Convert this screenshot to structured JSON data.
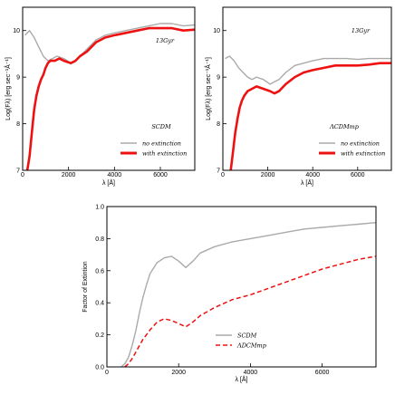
{
  "chart_data": [
    {
      "type": "line",
      "ylabel": "Log(Fλ) [erg sec⁻¹Å⁻¹]",
      "xlabel": "λ [Å]",
      "xlim": [
        0,
        7500
      ],
      "ylim": [
        7,
        10.5
      ],
      "xticks": [
        "0",
        "2000",
        "4000",
        "6000"
      ],
      "yticks": [
        "7",
        "8",
        "9",
        "10"
      ],
      "annotation_age": "13Gyr",
      "annotation_model": "SCDM",
      "legend_position": "bottom-right",
      "series": [
        {
          "name": "no extinction",
          "color": "#aaaaaa",
          "x": [
            100,
            300,
            500,
            700,
            900,
            1100,
            1300,
            1500,
            1800,
            2100,
            2300,
            2500,
            2800,
            3200,
            3600,
            4000,
            4500,
            5000,
            5500,
            6000,
            6500,
            7000,
            7500
          ],
          "y": [
            9.9,
            10.0,
            9.85,
            9.65,
            9.45,
            9.35,
            9.4,
            9.45,
            9.4,
            9.3,
            9.35,
            9.45,
            9.6,
            9.8,
            9.9,
            9.95,
            10.0,
            10.05,
            10.1,
            10.15,
            10.15,
            10.1,
            10.12
          ]
        },
        {
          "name": "with extinction",
          "color": "#ee1111",
          "x": [
            200,
            300,
            400,
            500,
            600,
            700,
            800,
            900,
            1000,
            1100,
            1200,
            1400,
            1600,
            1800,
            2100,
            2300,
            2500,
            2800,
            3200,
            3600,
            4000,
            4500,
            5000,
            5500,
            6000,
            6500,
            7000,
            7500
          ],
          "y": [
            7.0,
            7.3,
            7.8,
            8.3,
            8.6,
            8.8,
            8.95,
            9.05,
            9.2,
            9.3,
            9.35,
            9.35,
            9.4,
            9.35,
            9.3,
            9.35,
            9.45,
            9.55,
            9.75,
            9.85,
            9.9,
            9.95,
            10.0,
            10.05,
            10.05,
            10.05,
            10.0,
            10.02
          ]
        }
      ]
    },
    {
      "type": "line",
      "ylabel": "Log(Fλ) [erg sec⁻¹Å⁻¹]",
      "xlabel": "λ [Å]",
      "xlim": [
        0,
        7500
      ],
      "ylim": [
        7,
        10.5
      ],
      "xticks": [
        "0",
        "2000",
        "4000",
        "6000"
      ],
      "yticks": [
        "7",
        "8",
        "9",
        "10"
      ],
      "annotation_age": "13Gyr",
      "annotation_model": "ΛCDMmp",
      "legend_position": "bottom-right",
      "series": [
        {
          "name": "no extinction",
          "color": "#aaaaaa",
          "x": [
            100,
            300,
            500,
            700,
            900,
            1100,
            1300,
            1500,
            1800,
            2100,
            2300,
            2500,
            2800,
            3200,
            3600,
            4000,
            4500,
            5000,
            5500,
            6000,
            6500,
            7000,
            7500
          ],
          "y": [
            9.4,
            9.45,
            9.35,
            9.2,
            9.1,
            9.0,
            8.95,
            9.0,
            8.95,
            8.85,
            8.9,
            8.95,
            9.1,
            9.25,
            9.3,
            9.35,
            9.4,
            9.4,
            9.4,
            9.38,
            9.4,
            9.4,
            9.4
          ]
        },
        {
          "name": "with extinction",
          "color": "#ee1111",
          "x": [
            350,
            450,
            550,
            650,
            750,
            850,
            950,
            1100,
            1300,
            1500,
            1800,
            2100,
            2300,
            2500,
            2800,
            3200,
            3600,
            4000,
            4500,
            5000,
            5500,
            6000,
            6500,
            7000,
            7500
          ],
          "y": [
            7.0,
            7.4,
            7.8,
            8.1,
            8.35,
            8.5,
            8.6,
            8.7,
            8.75,
            8.8,
            8.75,
            8.7,
            8.65,
            8.7,
            8.85,
            9.0,
            9.1,
            9.15,
            9.2,
            9.25,
            9.25,
            9.25,
            9.27,
            9.3,
            9.3
          ]
        }
      ]
    },
    {
      "type": "line",
      "ylabel": "Factor of Extintion",
      "xlabel": "λ [Å]",
      "xlim": [
        0,
        7500
      ],
      "ylim": [
        0,
        1
      ],
      "xticks": [
        "0",
        "2000",
        "4000",
        "6000"
      ],
      "yticks": [
        "0.0",
        "0.2",
        "0.4",
        "0.6",
        "0.8",
        "1.0"
      ],
      "legend_position": "bottom-right",
      "series": [
        {
          "name": "SCDM",
          "color": "#aaaaaa",
          "dash": "solid",
          "x": [
            400,
            500,
            600,
            700,
            800,
            900,
            1000,
            1100,
            1200,
            1400,
            1600,
            1800,
            2000,
            2200,
            2400,
            2600,
            3000,
            3500,
            4000,
            4500,
            5000,
            5500,
            6000,
            6500,
            7000,
            7500
          ],
          "y": [
            0.0,
            0.02,
            0.06,
            0.13,
            0.22,
            0.33,
            0.43,
            0.51,
            0.58,
            0.65,
            0.68,
            0.69,
            0.66,
            0.62,
            0.66,
            0.71,
            0.75,
            0.78,
            0.8,
            0.82,
            0.84,
            0.86,
            0.87,
            0.88,
            0.89,
            0.9
          ]
        },
        {
          "name": "ΛDCMmp",
          "color": "#ee1111",
          "dash": "dashed",
          "x": [
            500,
            600,
            700,
            800,
            900,
            1000,
            1200,
            1400,
            1600,
            1800,
            2000,
            2200,
            2400,
            2600,
            3000,
            3500,
            4000,
            4500,
            5000,
            5500,
            6000,
            6500,
            7000,
            7500
          ],
          "y": [
            0.0,
            0.02,
            0.05,
            0.09,
            0.13,
            0.17,
            0.23,
            0.28,
            0.3,
            0.29,
            0.27,
            0.25,
            0.28,
            0.32,
            0.37,
            0.42,
            0.45,
            0.49,
            0.53,
            0.57,
            0.61,
            0.64,
            0.67,
            0.69
          ]
        }
      ]
    }
  ]
}
